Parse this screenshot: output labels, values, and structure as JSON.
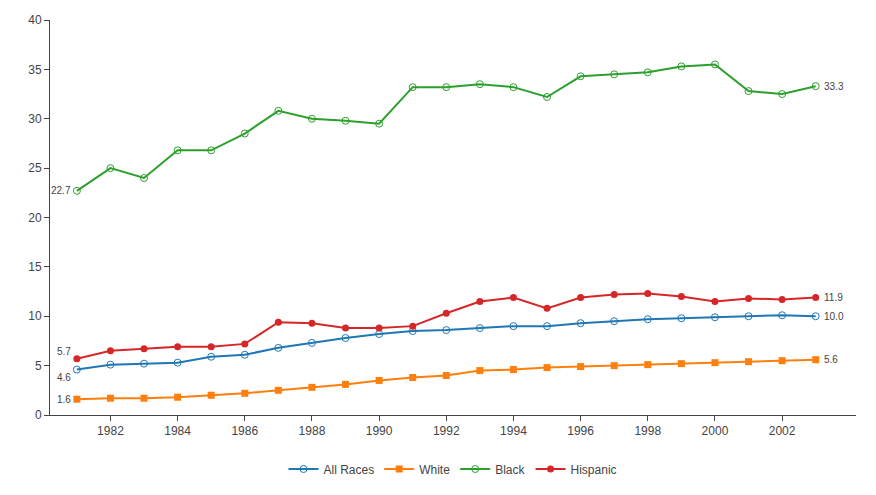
{
  "chart_data": {
    "type": "line",
    "x": [
      1981,
      1982,
      1983,
      1984,
      1985,
      1986,
      1987,
      1988,
      1989,
      1990,
      1991,
      1992,
      1993,
      1994,
      1995,
      1996,
      1997,
      1998,
      1999,
      2000,
      2001,
      2002,
      2003
    ],
    "series": [
      {
        "name": "All Races",
        "marker": "circle-open",
        "values": [
          4.6,
          5.1,
          5.2,
          5.3,
          5.9,
          6.1,
          6.8,
          7.3,
          7.8,
          8.2,
          8.5,
          8.6,
          8.8,
          9.0,
          9.0,
          9.3,
          9.5,
          9.7,
          9.8,
          9.9,
          10.0,
          10.1,
          10.0
        ]
      },
      {
        "name": "White",
        "marker": "square",
        "values": [
          1.6,
          1.7,
          1.7,
          1.8,
          2.0,
          2.2,
          2.5,
          2.8,
          3.1,
          3.5,
          3.8,
          4.0,
          4.5,
          4.6,
          4.8,
          4.9,
          5.0,
          5.1,
          5.2,
          5.3,
          5.4,
          5.5,
          5.6
        ]
      },
      {
        "name": "Black",
        "marker": "circle-open",
        "values": [
          22.7,
          25.0,
          24.0,
          26.8,
          26.8,
          28.5,
          30.8,
          30.0,
          29.8,
          29.5,
          33.2,
          33.2,
          33.5,
          33.2,
          32.2,
          34.3,
          34.5,
          34.7,
          35.3,
          35.5,
          32.8,
          32.5,
          33.3
        ]
      },
      {
        "name": "Hispanic",
        "marker": "circle",
        "values": [
          5.7,
          6.5,
          6.7,
          6.9,
          6.9,
          7.2,
          9.4,
          9.3,
          8.8,
          8.8,
          9.0,
          10.3,
          11.5,
          11.9,
          10.8,
          11.9,
          12.2,
          12.3,
          12.0,
          11.5,
          11.8,
          11.7,
          11.9
        ]
      }
    ],
    "xlim": [
      1980.2,
      2004.2
    ],
    "xticks": [
      1982,
      1984,
      1986,
      1988,
      1990,
      1992,
      1994,
      1996,
      1998,
      2000,
      2002
    ],
    "ylim": [
      0,
      40
    ],
    "yticks": [
      0,
      5,
      10,
      15,
      20,
      25,
      30,
      35,
      40
    ],
    "grid": false,
    "legend": "bottom",
    "annotations": [
      {
        "text": "22.7",
        "x": 1981,
        "y": 22.7
      },
      {
        "text": "4.6",
        "x": 1981,
        "y": 4.6
      },
      {
        "text": "5.7",
        "x": 1981,
        "y": 5.7
      },
      {
        "text": "1.6",
        "x": 1981,
        "y": 1.6
      },
      {
        "text": "33.3",
        "x": 2003,
        "y": 33.3
      },
      {
        "text": "10.0",
        "x": 2003,
        "y": 10.0
      },
      {
        "text": "11.9",
        "x": 2003,
        "y": 11.9
      },
      {
        "text": "5.6",
        "x": 2003,
        "y": 5.6
      }
    ]
  }
}
